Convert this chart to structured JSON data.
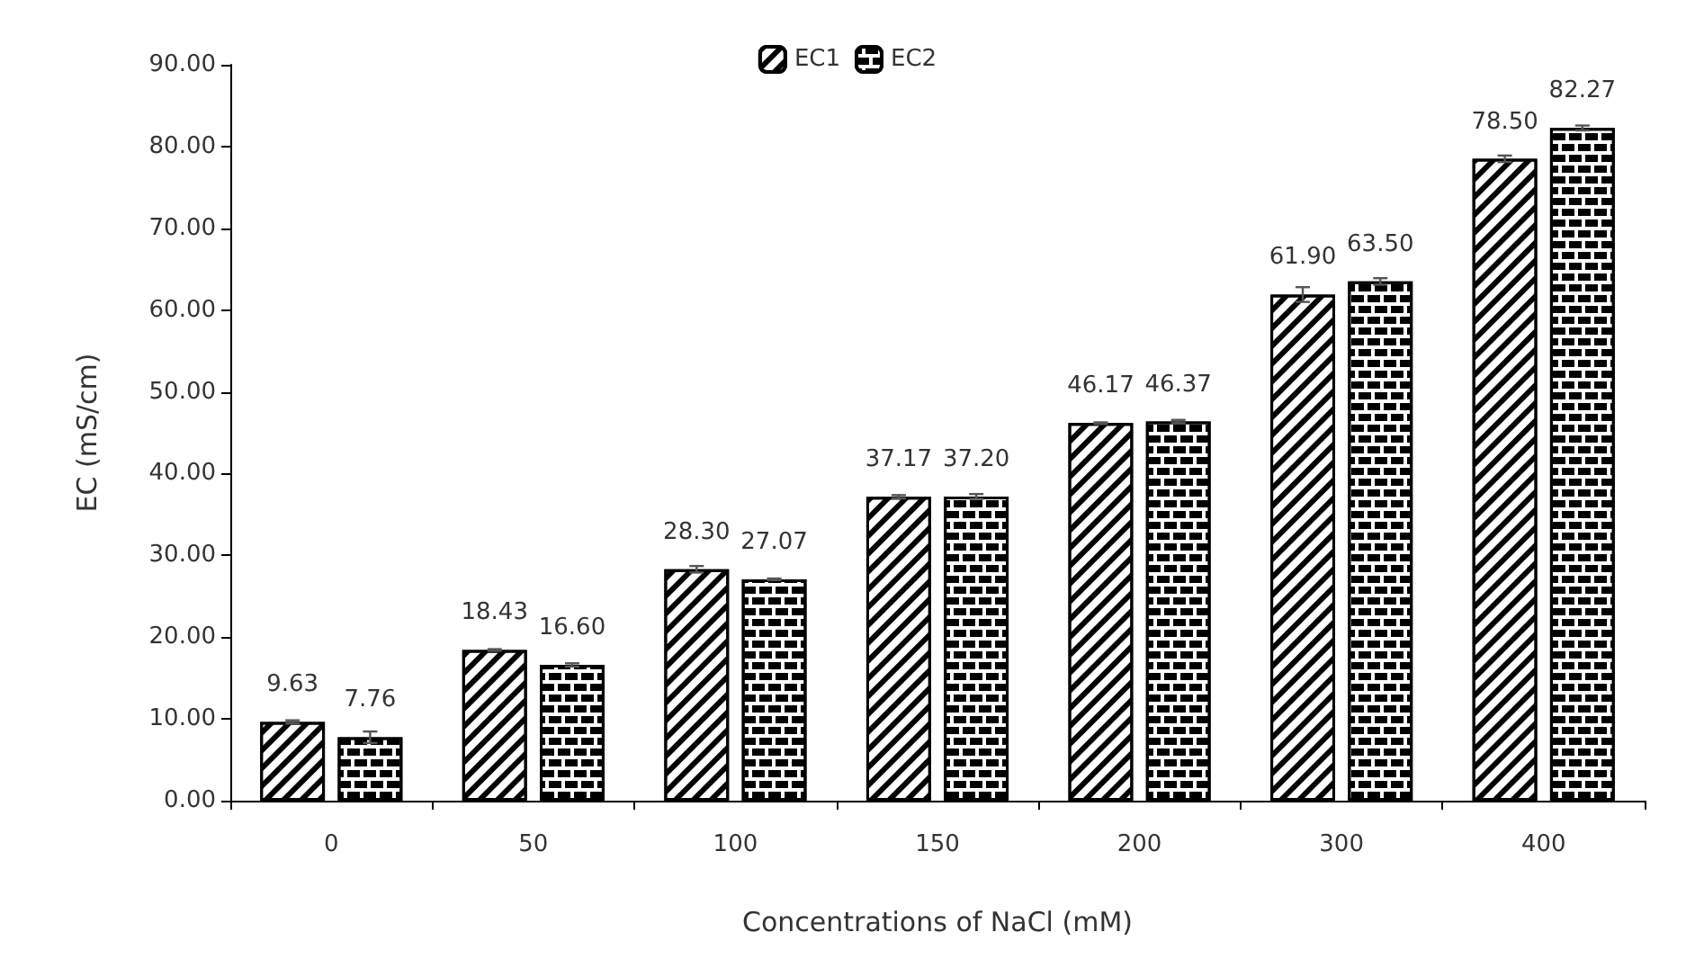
{
  "chart_data": {
    "type": "bar",
    "xlabel": "Concentrations of NaCl (mM)",
    "ylabel": "EC (mS/cm)",
    "categories": [
      "0",
      "50",
      "100",
      "150",
      "200",
      "300",
      "400"
    ],
    "series": [
      {
        "name": "EC1",
        "color": "#000000",
        "values": [
          9.63,
          18.43,
          28.3,
          37.17,
          46.17,
          61.9,
          78.5
        ],
        "errors": [
          0.2,
          0.1,
          0.4,
          0.2,
          0.1,
          0.9,
          0.4
        ],
        "value_labels": [
          "9.63",
          "18.43",
          "28.30",
          "37.17",
          "46.17",
          "61.90",
          "78.50"
        ]
      },
      {
        "name": "EC2",
        "color": "#000000",
        "values": [
          7.76,
          16.6,
          27.07,
          37.2,
          46.37,
          63.5,
          82.27
        ],
        "errors": [
          0.7,
          0.2,
          0.1,
          0.3,
          0.2,
          0.4,
          0.3
        ],
        "value_labels": [
          "7.76",
          "16.60",
          "27.07",
          "37.20",
          "46.37",
          "63.50",
          "82.27"
        ]
      }
    ],
    "ylim": [
      0,
      90
    ],
    "yticks": [
      {
        "value": 0,
        "label": "0.00"
      },
      {
        "value": 10,
        "label": "10.00"
      },
      {
        "value": 20,
        "label": "20.00"
      },
      {
        "value": 30,
        "label": "30.00"
      },
      {
        "value": 40,
        "label": "40.00"
      },
      {
        "value": 50,
        "label": "50.00"
      },
      {
        "value": 60,
        "label": "60.00"
      },
      {
        "value": 70,
        "label": "70.00"
      },
      {
        "value": 80,
        "label": "80.00"
      },
      {
        "value": 90,
        "label": "90.00"
      }
    ],
    "legend": "top",
    "grid": false
  }
}
